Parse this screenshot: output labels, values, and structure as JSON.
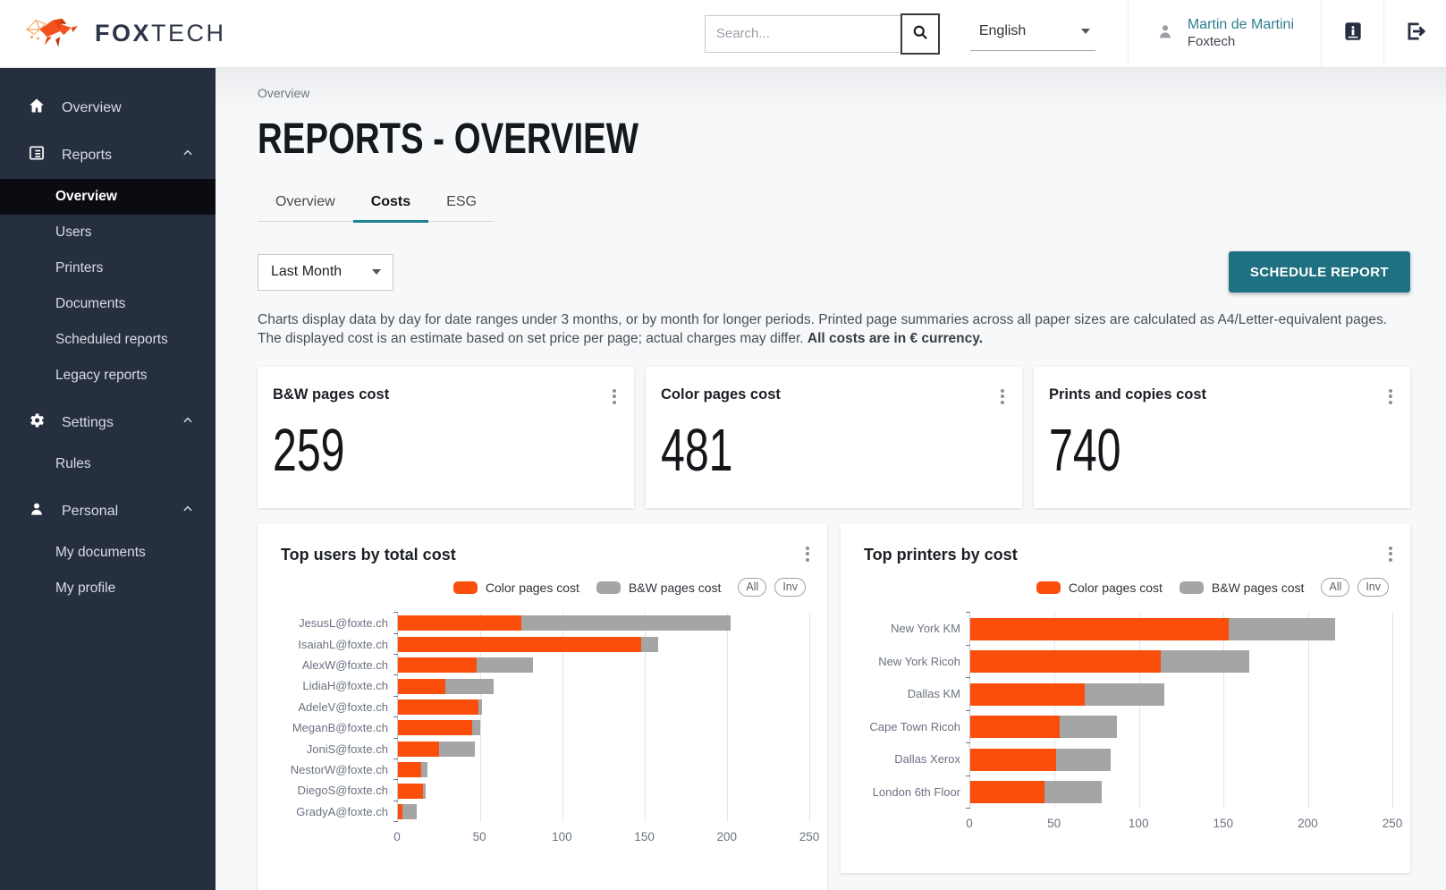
{
  "header": {
    "brand": {
      "word_bold": "FOX",
      "word_light": "TECH"
    },
    "search": {
      "placeholder": "Search..."
    },
    "language": {
      "selected": "English"
    },
    "user": {
      "name": "Martin de Martini",
      "company": "Foxtech"
    }
  },
  "sidebar": {
    "overview": "Overview",
    "reports": {
      "label": "Reports",
      "items": [
        "Overview",
        "Users",
        "Printers",
        "Documents",
        "Scheduled reports",
        "Legacy reports"
      ],
      "active_item": "Overview"
    },
    "settings": {
      "label": "Settings",
      "items": [
        "Rules"
      ]
    },
    "personal": {
      "label": "Personal",
      "items": [
        "My documents",
        "My profile"
      ]
    }
  },
  "main": {
    "breadcrumb": "Overview",
    "title": "REPORTS - OVERVIEW",
    "tabs": [
      "Overview",
      "Costs",
      "ESG"
    ],
    "active_tab": "Costs",
    "period_filter": "Last Month",
    "schedule_button": "SCHEDULE REPORT",
    "description_text": "Charts display data by day for date ranges under 3 months, or by month for longer periods. Printed page summaries across all paper sizes are calculated as A4/Letter-equivalent pages. The displayed cost is an estimate based on set price per page; actual charges may differ. ",
    "description_bold": "All costs are in € currency.",
    "stat_cards": [
      {
        "title": "B&W pages cost",
        "value": "259"
      },
      {
        "title": "Color pages cost",
        "value": "481"
      },
      {
        "title": "Prints and copies cost",
        "value": "740"
      }
    ]
  },
  "colors": {
    "accent_orange": "#fa4e0a",
    "bar_gray": "#a5a5a5",
    "teal": "#1f7080",
    "sidebar_navy": "#262f40"
  },
  "chart_data": [
    {
      "type": "bar",
      "orientation": "horizontal",
      "stacked": true,
      "title": "Top users by total cost",
      "categories": [
        "JesusL@foxte.ch",
        "IsaiahL@foxte.ch",
        "AlexW@foxte.ch",
        "LidiaH@foxte.ch",
        "AdeleV@foxte.ch",
        "MeganB@foxte.ch",
        "JoniS@foxte.ch",
        "NestorW@foxte.ch",
        "DiegoS@foxte.ch",
        "GradyA@foxte.ch"
      ],
      "series": [
        {
          "name": "Color pages cost",
          "color": "#fa4e0a",
          "values": [
            75,
            148,
            48,
            29,
            49,
            45,
            25,
            14,
            15,
            2.5
          ]
        },
        {
          "name": "B&W pages cost",
          "color": "#a5a5a5",
          "values": [
            127,
            10,
            34,
            29,
            2,
            5,
            22,
            4,
            2,
            9
          ]
        }
      ],
      "xlim": [
        0,
        250
      ],
      "xticks": [
        0,
        50,
        100,
        150,
        200,
        250
      ],
      "xlabel": "",
      "ylabel": "",
      "grid": true,
      "legend_position": "top-right",
      "toggles": [
        "All",
        "Inv"
      ]
    },
    {
      "type": "bar",
      "orientation": "horizontal",
      "stacked": true,
      "title": "Top printers by cost",
      "categories": [
        "New York KM",
        "New York Ricoh",
        "Dallas KM",
        "Cape Town Ricoh",
        "Dallas Xerox",
        "London 6th Floor"
      ],
      "series": [
        {
          "name": "Color pages cost",
          "color": "#fa4e0a",
          "values": [
            153,
            113,
            68,
            53,
            51,
            44
          ]
        },
        {
          "name": "B&W pages cost",
          "color": "#a5a5a5",
          "values": [
            63,
            52,
            47,
            34,
            32,
            34
          ]
        }
      ],
      "xlim": [
        0,
        250
      ],
      "xticks": [
        0,
        50,
        100,
        150,
        200,
        250
      ],
      "xlabel": "",
      "ylabel": "",
      "grid": true,
      "legend_position": "top-right",
      "toggles": [
        "All",
        "Inv"
      ]
    }
  ]
}
